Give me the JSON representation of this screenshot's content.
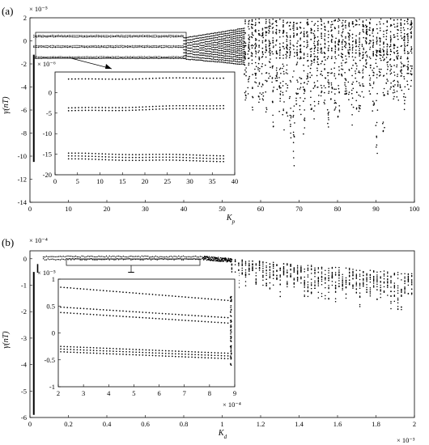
{
  "chart_data": [
    {
      "type": "scatter",
      "panel_label": "(a)",
      "exponent_label": "× 10⁻⁵",
      "xlabel": "K",
      "xlabel_sub": "p",
      "ylabel": "γ(nT)",
      "xlim": [
        0,
        100
      ],
      "ylim": [
        -14,
        2
      ],
      "xticks": [
        "0",
        "10",
        "20",
        "30",
        "40",
        "50",
        "60",
        "70",
        "80",
        "90",
        "100"
      ],
      "yticks": [
        "2",
        "0",
        "-2",
        "-4",
        "-6",
        "-8",
        "-10",
        "-12",
        "-14"
      ],
      "grid": false,
      "regions": [
        {
          "name": "stable-bands",
          "x_range": [
            1,
            40
          ],
          "bands": [
            0.35,
            -0.55,
            -1.5
          ],
          "thickness": 0.06
        },
        {
          "name": "transition",
          "x_range": [
            40,
            56
          ],
          "y_top": [
            0.25,
            1.1
          ],
          "y_bottom": [
            -1.55,
            -2.05
          ]
        },
        {
          "name": "chaotic",
          "x_range": [
            56,
            100
          ],
          "y_top": 1.9,
          "y_bottom_min": -12.6
        }
      ],
      "left_spike": {
        "x": 1,
        "y_from": -1.2,
        "y_to": -10.5
      },
      "inset": {
        "exponent_label": "× 10⁻⁶",
        "xlim": [
          0,
          40
        ],
        "ylim": [
          -20,
          5
        ],
        "xticks": [
          "0",
          "5",
          "10",
          "15",
          "20",
          "25",
          "30",
          "35",
          "40"
        ],
        "yticks": [
          "-20",
          "-15",
          "-10",
          "-5",
          "0"
        ],
        "series": [
          {
            "x": [
              3,
              37.5
            ],
            "y_start": 3.2,
            "y_end": 3.6,
            "rows": 1
          },
          {
            "x": [
              3,
              37.5
            ],
            "y_start": -3.8,
            "y_end": -3.1,
            "rows": 2
          },
          {
            "x": [
              3,
              37.5
            ],
            "y_start": -14.8,
            "y_end": -15.3,
            "rows": 3
          }
        ]
      }
    },
    {
      "type": "scatter",
      "panel_label": "(b)",
      "exponent_label": "× 10⁻⁴",
      "xlabel": "K",
      "xlabel_sub": "d",
      "x_exponent_label": "× 10⁻³",
      "ylabel": "γ(nT)",
      "xlim": [
        0,
        2
      ],
      "ylim": [
        -6,
        0.3
      ],
      "xticks": [
        "0",
        "0.2",
        "0.4",
        "0.6",
        "0.8",
        "1",
        "1.2",
        "1.4",
        "1.6",
        "1.8",
        "2"
      ],
      "yticks": [
        "0",
        "-1",
        "-2",
        "-3",
        "-4",
        "-5",
        "-6"
      ],
      "grid": false,
      "regions": [
        {
          "name": "stable-bands",
          "x_range": [
            0.07,
            0.9
          ],
          "bands": [
            0.08,
            -0.02
          ],
          "thickness": 0.05
        },
        {
          "name": "scattered",
          "x_range": [
            1.05,
            2
          ],
          "y_top_start": 0,
          "y_top_end": -0.55
        }
      ],
      "left_spike": {
        "x": 0.02,
        "y_from": -0.5,
        "y_to": -5.9
      },
      "inset": {
        "exponent_label": "× 10⁻⁵",
        "x_exponent_label": "× 10⁻⁴",
        "xlim": [
          2,
          9
        ],
        "ylim": [
          -1,
          1
        ],
        "xticks": [
          "2",
          "3",
          "4",
          "5",
          "6",
          "7",
          "8",
          "9"
        ],
        "yticks": [
          "1",
          "0.5",
          "0",
          "-0.5",
          "-1"
        ],
        "series": [
          {
            "x": [
              2.1,
              8.85
            ],
            "y_start": 0.85,
            "y_end": 0.6
          },
          {
            "x": [
              2.1,
              8.85
            ],
            "y_start": 0.48,
            "y_end": 0.28
          },
          {
            "x": [
              2.1,
              8.85
            ],
            "y_start": 0.38,
            "y_end": 0.18
          },
          {
            "x": [
              2.1,
              8.85
            ],
            "y_start": -0.25,
            "y_end": -0.38
          },
          {
            "x": [
              2.1,
              8.85
            ],
            "y_start": -0.3,
            "y_end": -0.43
          },
          {
            "x": [
              2.1,
              8.85
            ],
            "y_start": -0.35,
            "y_end": -0.48
          }
        ]
      }
    }
  ]
}
